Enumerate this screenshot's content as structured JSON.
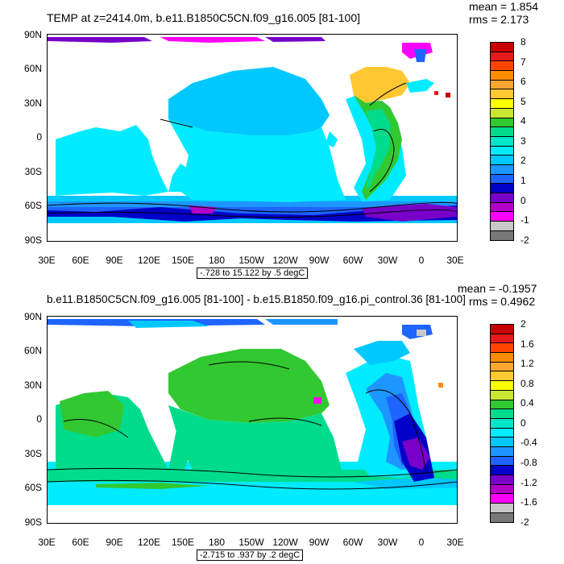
{
  "panels": [
    {
      "title": "TEMP at z=2414.0m, b.e11.B1850C5CN.f09_g16.005 [81-100]",
      "mean": "mean = 1.854",
      "rms": "rms = 2.173",
      "range": "-.728 to 15.122 by .5 degC",
      "lat_labels": [
        "90N",
        "60N",
        "30N",
        "0",
        "30S",
        "60S",
        "90S"
      ],
      "lon_labels": [
        "30E",
        "60E",
        "90E",
        "120E",
        "150E",
        "180",
        "150W",
        "120W",
        "90W",
        "60W",
        "30W",
        "0",
        "30E"
      ],
      "colorbar": {
        "labels": [
          "8",
          "7",
          "6",
          "5",
          "4",
          "3",
          "2",
          "1",
          "0",
          "-1",
          "-2"
        ],
        "colors": [
          "#c80000",
          "#e41a1c",
          "#ff4500",
          "#ff8c00",
          "#ffa532",
          "#ffc832",
          "#ffff00",
          "#c8e632",
          "#32c832",
          "#00dc8c",
          "#00e6c8",
          "#00ebff",
          "#00c8ff",
          "#1e96ff",
          "#1e64ff",
          "#0000c8",
          "#7800c8",
          "#b400c8",
          "#ff00ff",
          "#c8c8c8",
          "#787878"
        ]
      }
    },
    {
      "title": "b.e11.B1850C5CN.f09_g16.005 [81-100] - b.e15.B1850.f09_g16.pi_control.36 [81-100]",
      "mean": "mean = -0.1957",
      "rms": "rms = 0.4962",
      "range": "-2.715 to .937 by .2 degC",
      "lat_labels": [
        "90N",
        "60N",
        "30N",
        "0",
        "30S",
        "60S",
        "90S"
      ],
      "lon_labels": [
        "30E",
        "60E",
        "90E",
        "120E",
        "150E",
        "180",
        "150W",
        "120W",
        "90W",
        "60W",
        "30W",
        "0",
        "30E"
      ],
      "colorbar": {
        "labels": [
          "2",
          "1.6",
          "1.2",
          "0.8",
          "0.4",
          "0",
          "-0.4",
          "-0.8",
          "-1.2",
          "-1.6",
          "-2"
        ],
        "colors": [
          "#c80000",
          "#e41a1c",
          "#ff4500",
          "#ff8c00",
          "#ffa532",
          "#ffc832",
          "#ffff00",
          "#c8e632",
          "#32c832",
          "#00dc8c",
          "#00e6c8",
          "#00ebff",
          "#00c8ff",
          "#1e96ff",
          "#1e64ff",
          "#0000c8",
          "#7800c8",
          "#b400c8",
          "#ff00ff",
          "#c8c8c8",
          "#787878"
        ]
      }
    }
  ]
}
